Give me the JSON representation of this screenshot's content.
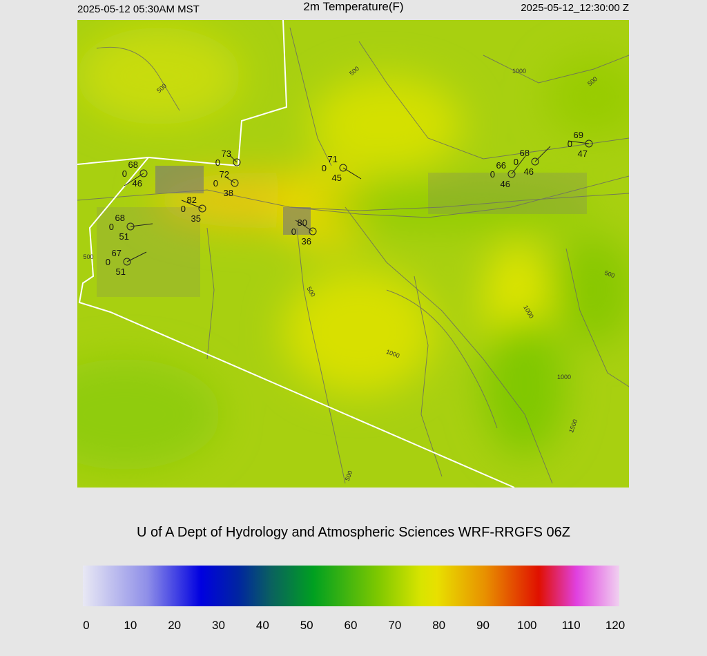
{
  "header": {
    "left": "2025-05-12 05:30AM MST",
    "title": "2m Temperature(F)",
    "right": "2025-05-12_12:30:00 Z"
  },
  "stations": [
    {
      "temp": 68,
      "wind": 0,
      "dew": 46
    },
    {
      "temp": 73,
      "wind": 0
    },
    {
      "temp": 72,
      "wind": 0,
      "dew": 38
    },
    {
      "temp": 82,
      "wind": 0,
      "dew": 35
    },
    {
      "temp": 68,
      "wind": 0,
      "dew": 51
    },
    {
      "temp": 67,
      "wind": 0,
      "dew": 51
    },
    {
      "temp": 80,
      "wind": 0,
      "dew": 36
    },
    {
      "temp": 71,
      "wind": 0,
      "dew": 45
    },
    {
      "temp": 66,
      "wind": 0,
      "dew": 46
    },
    {
      "temp": 68,
      "wind": 0,
      "dew": 46
    },
    {
      "temp": 69,
      "wind": 0,
      "dew": 47
    }
  ],
  "contour_labels": [
    500,
    500,
    1000,
    500,
    500,
    500,
    1000,
    1000,
    1000,
    1500,
    500,
    500
  ],
  "credit": "U of A Dept of Hydrology and Atmospheric Sciences WRF-RRGFS 06Z",
  "colorbar": {
    "ticks": [
      0,
      10,
      20,
      30,
      40,
      50,
      60,
      70,
      80,
      90,
      100,
      110,
      120
    ]
  }
}
